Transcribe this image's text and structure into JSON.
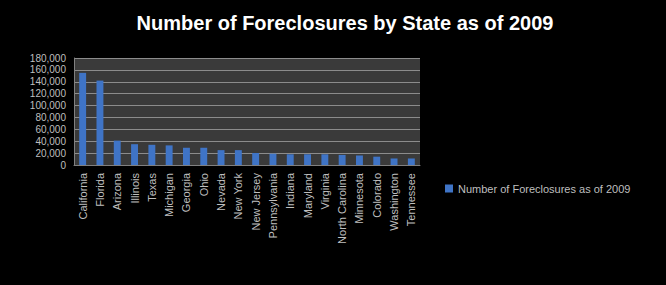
{
  "chart_data": {
    "type": "bar",
    "title": "Number of Foreclosures by State as of 2009",
    "categories": [
      "California",
      "Florida",
      "Arizona",
      "Illinois",
      "Texas",
      "Michigan",
      "Georgia",
      "Ohio",
      "Nevada",
      "New York",
      "New Jersey",
      "Pennsylvania",
      "Indiana",
      "Maryland",
      "Virginia",
      "North Carolina",
      "Minnesota",
      "Colorado",
      "Washington",
      "Tennessee"
    ],
    "series": [
      {
        "name": "Number of Foreclosures as of 2009",
        "color": "#3f74c6",
        "values": [
          155000,
          142000,
          41000,
          35000,
          34000,
          33000,
          29000,
          29000,
          25000,
          25000,
          20000,
          19000,
          18000,
          18000,
          18000,
          17000,
          16000,
          14000,
          11000,
          11000
        ]
      }
    ],
    "ylim": [
      0,
      180000
    ],
    "yticks": [
      0,
      {
        "value": 20000,
        "label": "20,000"
      },
      {
        "value": 40000,
        "label": "40,000"
      },
      {
        "value": 60000,
        "label": "60,000"
      },
      {
        "value": 80000,
        "label": "80,000"
      },
      {
        "value": 100000,
        "label": "100,000"
      },
      {
        "value": 120000,
        "label": "120,000"
      },
      {
        "value": 140000,
        "label": "140,000"
      },
      {
        "value": 160000,
        "label": "160,000"
      },
      {
        "value": 180000,
        "label": "180,000"
      }
    ],
    "grid": true,
    "legend": "right"
  }
}
